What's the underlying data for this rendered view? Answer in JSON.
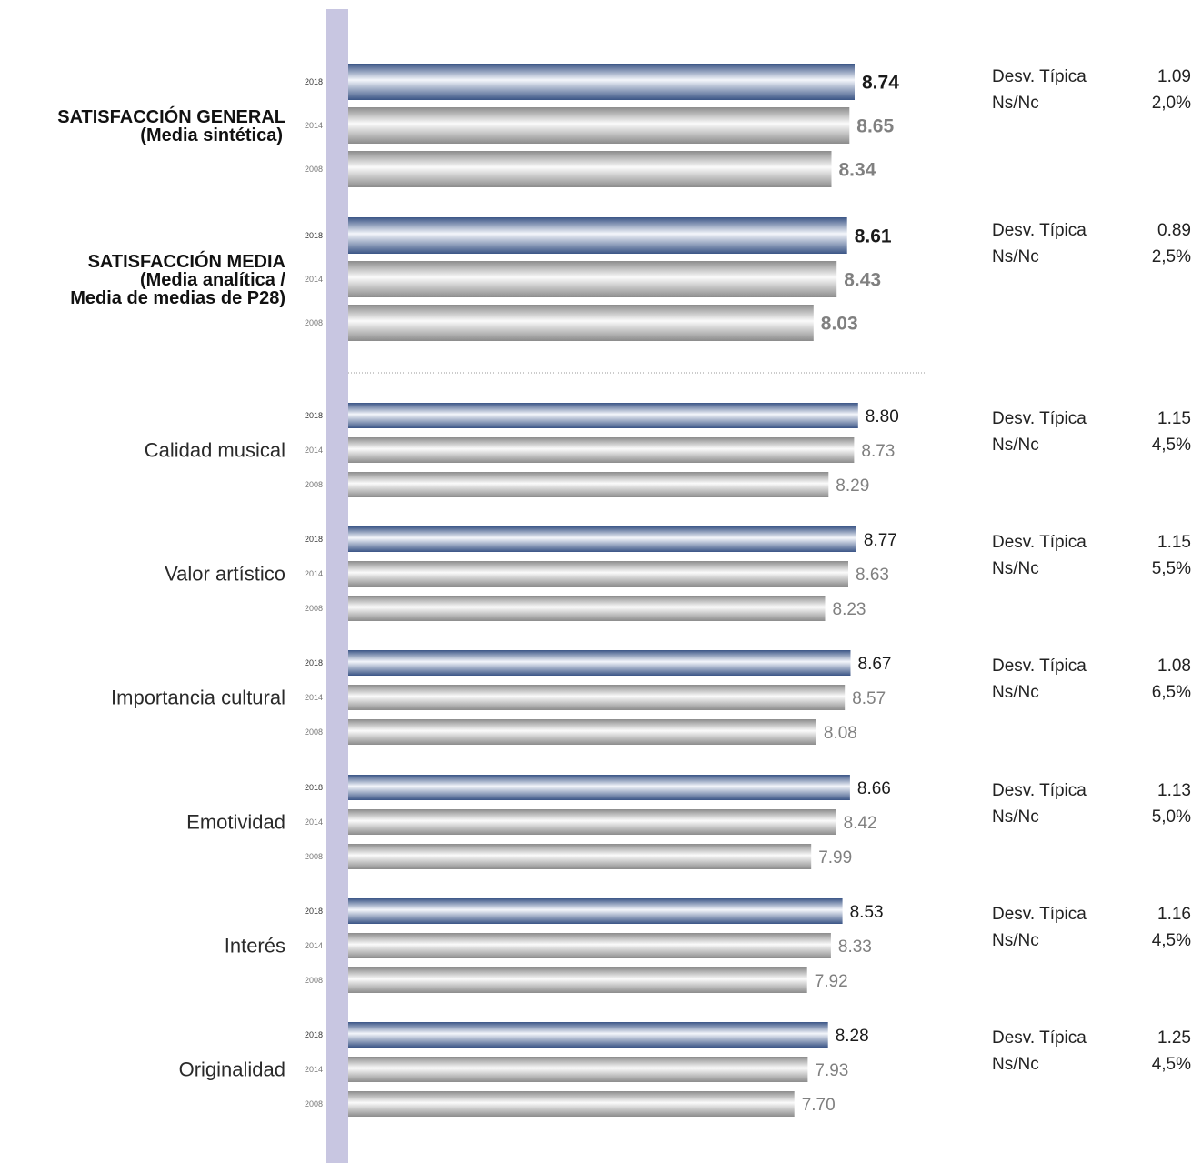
{
  "chart_data": {
    "type": "bar",
    "orientation": "horizontal",
    "series_years": [
      "2018",
      "2014",
      "2008"
    ],
    "colors": {
      "highlight": "#3e5c8f",
      "neutral": "#9a9a9a",
      "axis_band": "#c8c6e1",
      "bold_value_2018": "#1a1a1a",
      "value_gray": "#808080"
    },
    "groups": [
      {
        "label": [
          "SATISFACCIÓN GENERAL",
          "(Media sintética)"
        ],
        "bold": true,
        "values": [
          8.74,
          8.65,
          8.34
        ],
        "value_labels": [
          "8.74",
          "8.65",
          "8.34"
        ],
        "stats": {
          "desv_label": "Desv. Típica",
          "desv": "1.09",
          "nsnc_label": "Ns/Nc",
          "nsnc": "2,0%"
        }
      },
      {
        "label": [
          "SATISFACCIÓN MEDIA",
          "(Media analítica /",
          "Media de medias de P28)"
        ],
        "bold": true,
        "values": [
          8.61,
          8.43,
          8.03
        ],
        "value_labels": [
          "8.61",
          "8.43",
          "8.03"
        ],
        "stats": {
          "desv_label": "Desv. Típica",
          "desv": "0.89",
          "nsnc_label": "Ns/Nc",
          "nsnc": "2,5%"
        }
      },
      {
        "label": [
          "Calidad musical"
        ],
        "bold": false,
        "values": [
          8.8,
          8.73,
          8.29
        ],
        "value_labels": [
          "8.80",
          "8.73",
          "8.29"
        ],
        "stats": {
          "desv_label": "Desv. Típica",
          "desv": "1.15",
          "nsnc_label": "Ns/Nc",
          "nsnc": "4,5%"
        }
      },
      {
        "label": [
          "Valor artístico"
        ],
        "bold": false,
        "values": [
          8.77,
          8.63,
          8.23
        ],
        "value_labels": [
          "8.77",
          "8.63",
          "8.23"
        ],
        "stats": {
          "desv_label": "Desv. Típica",
          "desv": "1.15",
          "nsnc_label": "Ns/Nc",
          "nsnc": "5,5%"
        }
      },
      {
        "label": [
          "Importancia cultural"
        ],
        "bold": false,
        "values": [
          8.67,
          8.57,
          8.08
        ],
        "value_labels": [
          "8.67",
          "8.57",
          "8.08"
        ],
        "stats": {
          "desv_label": "Desv. Típica",
          "desv": "1.08",
          "nsnc_label": "Ns/Nc",
          "nsnc": "6,5%"
        }
      },
      {
        "label": [
          "Emotividad"
        ],
        "bold": false,
        "values": [
          8.66,
          8.42,
          7.99
        ],
        "value_labels": [
          "8.66",
          "8.42",
          "7.99"
        ],
        "stats": {
          "desv_label": "Desv. Típica",
          "desv": "1.13",
          "nsnc_label": "Ns/Nc",
          "nsnc": "5,0%"
        }
      },
      {
        "label": [
          "Interés"
        ],
        "bold": false,
        "values": [
          8.53,
          8.33,
          7.92
        ],
        "value_labels": [
          "8.53",
          "8.33",
          "7.92"
        ],
        "stats": {
          "desv_label": "Desv. Típica",
          "desv": "1.16",
          "nsnc_label": "Ns/Nc",
          "nsnc": "4,5%"
        }
      },
      {
        "label": [
          "Originalidad"
        ],
        "bold": false,
        "values": [
          8.28,
          7.93,
          7.7
        ],
        "value_labels": [
          "8.28",
          "7.93",
          "7.70"
        ],
        "stats": {
          "desv_label": "Desv. Típica",
          "desv": "1.25",
          "nsnc_label": "Ns/Nc",
          "nsnc": "4,5%"
        }
      }
    ]
  }
}
